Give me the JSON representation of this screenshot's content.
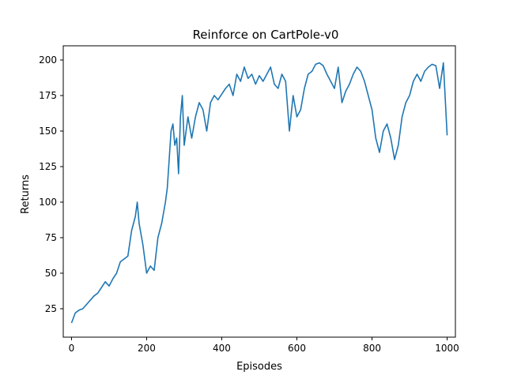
{
  "chart_data": {
    "type": "line",
    "title": "Reinforce on CartPole-v0",
    "xlabel": "Episodes",
    "ylabel": "Returns",
    "xlim": [
      -22,
      1022
    ],
    "ylim": [
      5,
      210
    ],
    "xticks": [
      0,
      200,
      400,
      600,
      800,
      1000
    ],
    "yticks": [
      25,
      50,
      75,
      100,
      125,
      150,
      175,
      200
    ],
    "grid": false,
    "legend": "none",
    "series_color": "#1f77b4",
    "series": [
      {
        "x": [
          0,
          10,
          20,
          30,
          40,
          50,
          60,
          70,
          80,
          90,
          100,
          110,
          120,
          130,
          140,
          150,
          160,
          170,
          175,
          180,
          190,
          200,
          210,
          220,
          230,
          240,
          250,
          255,
          260,
          265,
          270,
          275,
          280,
          285,
          290,
          295,
          300,
          310,
          320,
          330,
          340,
          350,
          360,
          370,
          380,
          390,
          400,
          410,
          420,
          430,
          440,
          450,
          460,
          470,
          480,
          490,
          500,
          510,
          520,
          530,
          540,
          550,
          560,
          570,
          580,
          590,
          600,
          610,
          620,
          630,
          640,
          650,
          660,
          670,
          680,
          690,
          700,
          710,
          720,
          730,
          740,
          750,
          760,
          770,
          780,
          790,
          800,
          810,
          820,
          830,
          840,
          850,
          860,
          870,
          880,
          890,
          900,
          910,
          920,
          930,
          940,
          950,
          960,
          970,
          980,
          990,
          1000
        ],
        "y": [
          15,
          22,
          24,
          25,
          28,
          31,
          34,
          36,
          40,
          44,
          41,
          46,
          50,
          58,
          60,
          62,
          80,
          90,
          100,
          85,
          70,
          50,
          55,
          52,
          75,
          85,
          100,
          110,
          130,
          150,
          155,
          140,
          145,
          120,
          160,
          175,
          140,
          160,
          145,
          160,
          170,
          165,
          150,
          170,
          175,
          172,
          176,
          180,
          183,
          175,
          190,
          185,
          195,
          187,
          190,
          183,
          189,
          185,
          190,
          195,
          183,
          180,
          190,
          185,
          150,
          175,
          160,
          165,
          180,
          190,
          192,
          197,
          198,
          196,
          190,
          185,
          180,
          195,
          170,
          178,
          183,
          190,
          195,
          192,
          185,
          175,
          165,
          145,
          135,
          150,
          155,
          145,
          130,
          140,
          160,
          170,
          175,
          185,
          190,
          185,
          192,
          195,
          197,
          196,
          180,
          198,
          147
        ]
      }
    ]
  }
}
